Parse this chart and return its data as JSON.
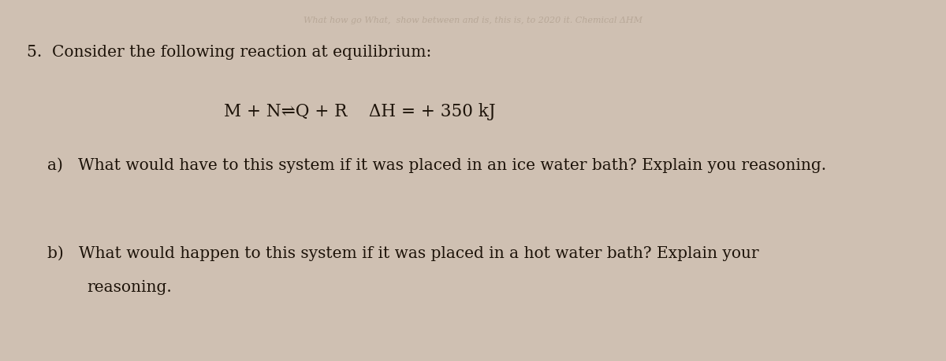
{
  "background_color": "#cfc0b2",
  "question_number": "5.",
  "line1": "Consider the following reaction at equilibrium:",
  "eq_text": "M + N⇌Q + R    ΔH = + 350 kJ",
  "part_a_label": "a)",
  "part_a_text": "What would have to this system if it was placed in an ice water bath? Explain you reasoning.",
  "part_b_label": "b)",
  "part_b_line1": "What would happen to this system if it was placed in a hot water bath? Explain your",
  "part_b_line2": "reasoning.",
  "font_color": "#1c1208",
  "watermark_color": "#b8a898",
  "watermark_text": "What how go What,  show between and is, this is, to 2020 it. Chemical ΔHM",
  "question_fontsize": 14.5,
  "equation_fontsize": 15.5,
  "parts_fontsize": 14.5,
  "watermark_fontsize": 8.0
}
